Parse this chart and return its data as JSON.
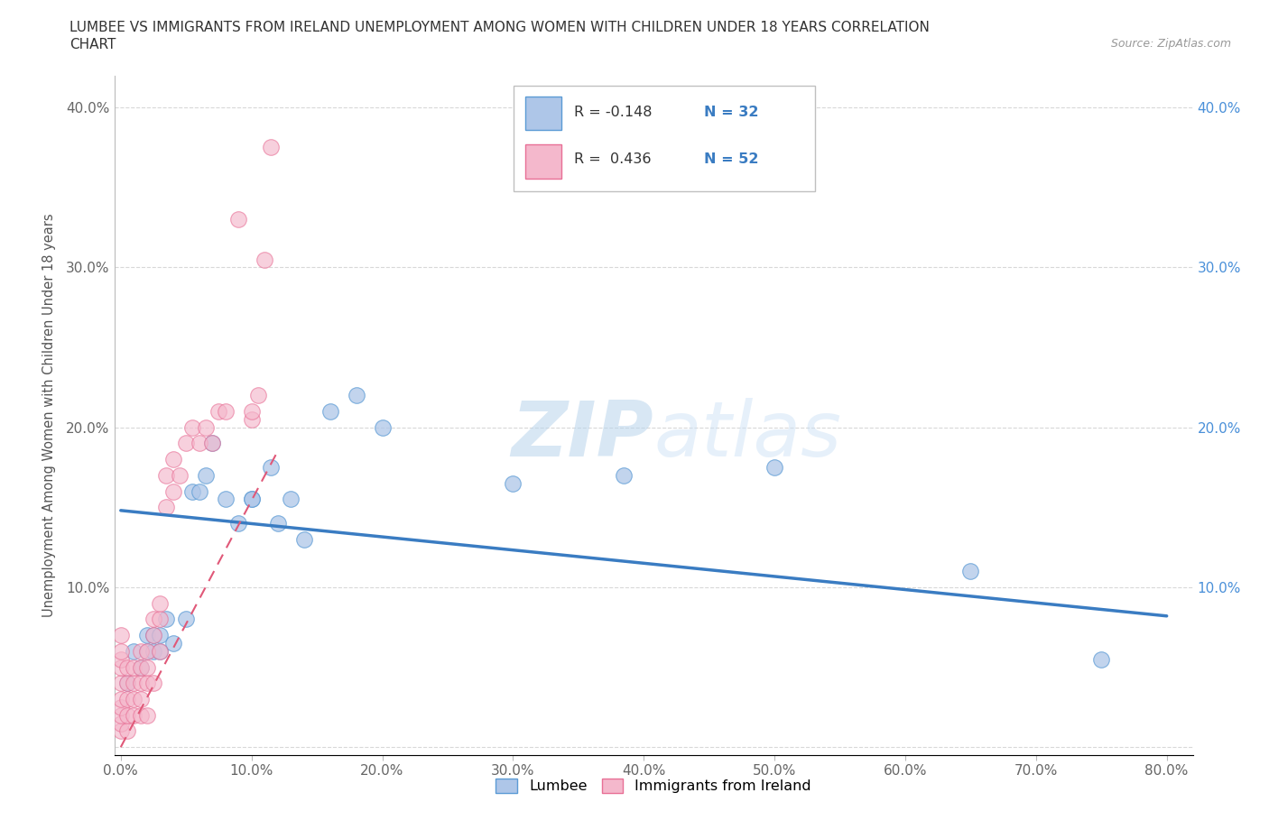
{
  "title_line1": "LUMBEE VS IMMIGRANTS FROM IRELAND UNEMPLOYMENT AMONG WOMEN WITH CHILDREN UNDER 18 YEARS CORRELATION",
  "title_line2": "CHART",
  "source_text": "Source: ZipAtlas.com",
  "ylabel": "Unemployment Among Women with Children Under 18 years",
  "watermark": "ZIPatlas",
  "xlim": [
    -0.005,
    0.82
  ],
  "ylim": [
    -0.005,
    0.42
  ],
  "lumbee_color": "#aec6e8",
  "ireland_color": "#f4b8cc",
  "lumbee_edge_color": "#5b9bd5",
  "ireland_edge_color": "#e87096",
  "lumbee_line_color": "#3a7cc2",
  "ireland_line_color": "#e05878",
  "background_color": "#ffffff",
  "grid_color": "#d8d8d8",
  "lumbee_x": [
    0.005,
    0.01,
    0.015,
    0.02,
    0.02,
    0.025,
    0.025,
    0.03,
    0.03,
    0.035,
    0.04,
    0.05,
    0.055,
    0.06,
    0.065,
    0.07,
    0.08,
    0.09,
    0.1,
    0.1,
    0.115,
    0.12,
    0.13,
    0.14,
    0.16,
    0.18,
    0.2,
    0.3,
    0.385,
    0.5,
    0.65,
    0.75
  ],
  "lumbee_y": [
    0.04,
    0.06,
    0.05,
    0.07,
    0.06,
    0.07,
    0.06,
    0.07,
    0.06,
    0.08,
    0.065,
    0.08,
    0.16,
    0.16,
    0.17,
    0.19,
    0.155,
    0.14,
    0.155,
    0.155,
    0.175,
    0.14,
    0.155,
    0.13,
    0.21,
    0.22,
    0.2,
    0.165,
    0.17,
    0.175,
    0.11,
    0.055
  ],
  "ireland_x": [
    0.0,
    0.0,
    0.0,
    0.0,
    0.0,
    0.0,
    0.0,
    0.0,
    0.0,
    0.0,
    0.005,
    0.005,
    0.005,
    0.005,
    0.005,
    0.01,
    0.01,
    0.01,
    0.01,
    0.015,
    0.015,
    0.015,
    0.015,
    0.015,
    0.02,
    0.02,
    0.02,
    0.02,
    0.025,
    0.025,
    0.025,
    0.03,
    0.03,
    0.03,
    0.035,
    0.035,
    0.04,
    0.04,
    0.045,
    0.05,
    0.055,
    0.06,
    0.065,
    0.07,
    0.075,
    0.08,
    0.09,
    0.1,
    0.1,
    0.105,
    0.11,
    0.115
  ],
  "ireland_y": [
    0.01,
    0.015,
    0.02,
    0.025,
    0.03,
    0.04,
    0.05,
    0.055,
    0.06,
    0.07,
    0.01,
    0.02,
    0.03,
    0.04,
    0.05,
    0.02,
    0.03,
    0.04,
    0.05,
    0.02,
    0.03,
    0.04,
    0.05,
    0.06,
    0.02,
    0.04,
    0.05,
    0.06,
    0.04,
    0.07,
    0.08,
    0.06,
    0.08,
    0.09,
    0.15,
    0.17,
    0.16,
    0.18,
    0.17,
    0.19,
    0.2,
    0.19,
    0.2,
    0.19,
    0.21,
    0.21,
    0.33,
    0.205,
    0.21,
    0.22,
    0.305,
    0.375
  ],
  "legend_label_lumbee": "Lumbee",
  "legend_label_ireland": "Immigrants from Ireland",
  "legend_R_lumbee": "R = -0.148",
  "legend_N_lumbee": "N = 32",
  "legend_R_ireland": "R =  0.436",
  "legend_N_ireland": "N = 52"
}
